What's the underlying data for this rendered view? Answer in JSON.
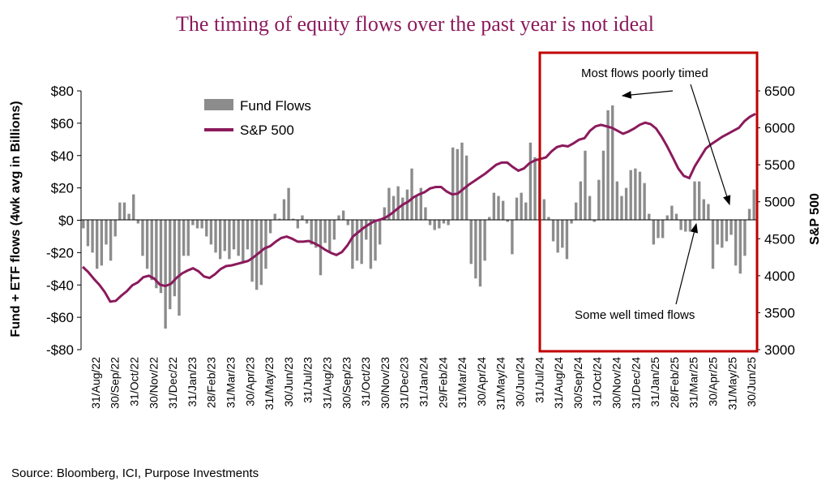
{
  "chart_data": {
    "type": "bar+line",
    "title": "The timing of equity flows over the past year is not ideal",
    "ylabel_left": "Fund + ETF flows (4wk avg in Billions)",
    "ylabel_right": "S&P 500",
    "ylim_left": [
      -80,
      80
    ],
    "ylim_right": [
      3000,
      6500
    ],
    "yticks_left": [
      "$80",
      "$60",
      "$40",
      "$20",
      "$0",
      "-$20",
      "-$40",
      "-$60",
      "-$80"
    ],
    "yticks_right": [
      "6500",
      "6000",
      "5500",
      "5000",
      "4500",
      "4000",
      "3500",
      "3000"
    ],
    "x_tick_labels": [
      "31/Aug/22",
      "30/Sep/22",
      "31/Oct/22",
      "30/Nov/22",
      "31/Dec/22",
      "31/Jan/23",
      "28/Feb/23",
      "31/Mar/23",
      "30/Apr/23",
      "31/May/23",
      "30/Jun/23",
      "31/Jul/23",
      "31/Aug/23",
      "30/Sep/23",
      "31/Oct/23",
      "30/Nov/23",
      "31/Dec/23",
      "31/Jan/24",
      "29/Feb/24",
      "31/Mar/24",
      "30/Apr/24",
      "31/May/24",
      "30/Jun/24",
      "31/Jul/24",
      "31/Aug/24",
      "30/Sep/24",
      "31/Oct/24",
      "30/Nov/24",
      "31/Dec/24",
      "31/Jan/25",
      "28/Feb/25",
      "31/Mar/25",
      "30/Apr/25",
      "31/May/25",
      "30/Jun/25"
    ],
    "series": [
      {
        "name": "Fund Flows",
        "type": "bar",
        "color": "#8c8c8c",
        "values": [
          -5,
          -16,
          -20,
          -30,
          -28,
          -15,
          -25,
          -10,
          11,
          11,
          4,
          16,
          -2,
          -22,
          -30,
          -37,
          -42,
          -45,
          -67,
          -55,
          -47,
          -59,
          -22,
          -22,
          -3,
          -5,
          -5,
          -10,
          -15,
          -20,
          -24,
          -19,
          -24,
          -18,
          -22,
          -26,
          -18,
          -38,
          -43,
          -40,
          -30,
          -8,
          4,
          1,
          13,
          20,
          1,
          -5,
          3,
          -2,
          -15,
          -17,
          -34,
          -14,
          -20,
          -12,
          3,
          6,
          -3,
          -30,
          -25,
          -27,
          -12,
          -30,
          -25,
          -15,
          8,
          20,
          15,
          21,
          14,
          19,
          32,
          15,
          20,
          8,
          -3,
          -6,
          -5,
          -2,
          -3,
          45,
          44,
          48,
          40,
          -27,
          -36,
          -41,
          -25,
          2,
          17,
          15,
          12,
          -1,
          -21,
          14,
          17,
          11,
          48,
          39,
          38,
          13,
          2,
          -13,
          -20,
          -17,
          -24,
          -2,
          11,
          24,
          43,
          15,
          -1,
          25,
          43,
          68,
          71,
          24,
          15,
          20,
          31,
          32,
          30,
          23,
          4,
          -15,
          -11,
          -11,
          3,
          9,
          4,
          -6,
          -7,
          -7,
          24,
          24,
          13,
          10,
          -30,
          -15,
          -17,
          -13,
          -9,
          -28,
          -33,
          -22,
          7,
          19
        ]
      },
      {
        "name": "S&P 500",
        "type": "line",
        "color": "#8b1a5c",
        "axis": "right",
        "values": [
          4120,
          4050,
          3960,
          3880,
          3780,
          3650,
          3660,
          3730,
          3790,
          3870,
          3910,
          3980,
          4000,
          3960,
          3880,
          3860,
          3890,
          3970,
          4030,
          4070,
          4100,
          4060,
          3990,
          3970,
          4020,
          4090,
          4130,
          4140,
          4160,
          4180,
          4200,
          4250,
          4310,
          4370,
          4400,
          4460,
          4510,
          4530,
          4500,
          4460,
          4460,
          4470,
          4440,
          4400,
          4350,
          4310,
          4280,
          4320,
          4410,
          4530,
          4590,
          4650,
          4700,
          4740,
          4760,
          4790,
          4840,
          4900,
          4960,
          5000,
          5060,
          5100,
          5130,
          5180,
          5200,
          5200,
          5140,
          5100,
          5110,
          5170,
          5230,
          5280,
          5330,
          5380,
          5440,
          5500,
          5530,
          5530,
          5470,
          5420,
          5450,
          5520,
          5560,
          5580,
          5600,
          5680,
          5740,
          5760,
          5750,
          5790,
          5840,
          5860,
          5960,
          6020,
          6040,
          6020,
          6000,
          5960,
          5920,
          5950,
          5990,
          6040,
          6070,
          6050,
          5990,
          5880,
          5750,
          5600,
          5450,
          5350,
          5320,
          5480,
          5600,
          5720,
          5780,
          5830,
          5880,
          5920,
          5960,
          6000,
          6090,
          6150,
          6190
        ]
      }
    ],
    "legend_position": "top-left",
    "grid": false,
    "annotations": [
      "Most flows poorly timed",
      "Some well timed flows"
    ],
    "highlight_box_color": "#c00000"
  },
  "source": "Source: Bloomberg, ICI, Purpose Investments"
}
